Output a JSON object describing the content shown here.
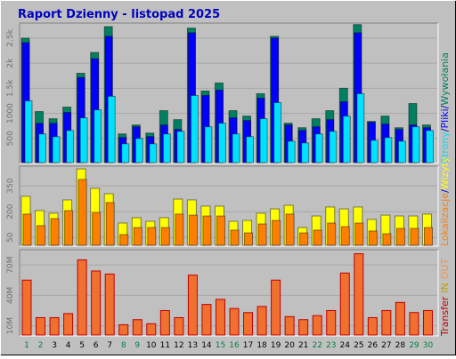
{
  "title": "Raport Dzienny -  listopad 2025",
  "legend_separator": "/",
  "chart_data": [
    {
      "type": "bar",
      "ylim": [
        0,
        2800
      ],
      "yticks": [
        500,
        1000,
        {
          "value": 1500,
          "label": "1.5k"
        },
        {
          "value": 2000,
          "label": "2k"
        },
        {
          "value": 2500,
          "label": "2.5k"
        }
      ],
      "grid": true,
      "series": [
        {
          "name": "Wywołania",
          "color": "#008060",
          "values": [
            2500,
            1036,
            893,
            1125,
            1800,
            2214,
            2730,
            590,
            768,
            607,
            1054,
            875,
            2700,
            1446,
            1607,
            1054,
            946,
            1393,
            2536,
            804,
            714,
            893,
            1054,
            1500,
            2770,
            840,
            946,
            714,
            1196,
            768
          ]
        },
        {
          "name": "Pliki",
          "color": "#0000ff",
          "values": [
            2410,
            800,
            800,
            1018,
            1714,
            2090,
            2536,
            518,
            732,
            536,
            768,
            680,
            2607,
            1357,
            1464,
            910,
            857,
            1304,
            2500,
            768,
            660,
            732,
            875,
            1232,
            2607,
            821,
            786,
            680,
            768,
            714
          ]
        },
        {
          "name": "Strony",
          "color": "#00e0ff",
          "values": [
            1250,
            590,
            536,
            660,
            910,
            1070,
            1340,
            393,
            500,
            393,
            590,
            643,
            1357,
            732,
            804,
            590,
            536,
            893,
            1214,
            446,
            410,
            590,
            643,
            946,
            1393,
            464,
            518,
            446,
            732,
            660
          ]
        }
      ]
    },
    {
      "type": "bar",
      "ylim": [
        0,
        464
      ],
      "yticks": [
        50,
        200,
        350
      ],
      "grid": true,
      "series": [
        {
          "name": "Wizyty",
          "color": "#ffff00",
          "values": [
            289,
            206,
            191,
            268,
            448,
            335,
            304,
            134,
            165,
            144,
            165,
            273,
            268,
            232,
            232,
            144,
            149,
            191,
            216,
            237,
            108,
            175,
            227,
            216,
            227,
            155,
            180,
            175,
            175,
            186
          ]
        },
        {
          "name": "Lokalizacje",
          "color": "#ff8000",
          "values": [
            186,
            119,
            160,
            206,
            387,
            196,
            253,
            67,
            108,
            108,
            108,
            186,
            180,
            175,
            175,
            93,
            77,
            129,
            149,
            186,
            77,
            93,
            134,
            113,
            134,
            88,
            72,
            103,
            103,
            108
          ]
        }
      ]
    },
    {
      "type": "bar",
      "ylim": [
        0,
        85
      ],
      "yticks": [
        {
          "value": 10,
          "label": "10M"
        },
        {
          "value": 40,
          "label": "40M"
        },
        {
          "value": 70,
          "label": "70M"
        }
      ],
      "grid": true,
      "categories": [
        "1",
        "2",
        "3",
        "4",
        "5",
        "6",
        "7",
        "8",
        "9",
        "10",
        "11",
        "12",
        "13",
        "14",
        "15",
        "16",
        "17",
        "18",
        "19",
        "20",
        "21",
        "22",
        "23",
        "24",
        "25",
        "26",
        "27",
        "28",
        "29",
        "30"
      ],
      "category_colors": [
        "#008040",
        "#008040",
        "#000000",
        "#000000",
        "#000000",
        "#000000",
        "#000000",
        "#008040",
        "#008040",
        "#000000",
        "#000000",
        "#000000",
        "#000000",
        "#000000",
        "#008040",
        "#008040",
        "#000000",
        "#000000",
        "#000000",
        "#000000",
        "#000000",
        "#008040",
        "#008040",
        "#000000",
        "#000000",
        "#000000",
        "#000000",
        "#000000",
        "#008040",
        "#008040"
      ],
      "legend_notes": [
        {
          "text": "IN",
          "color": "#c0a000"
        },
        {
          "text": "OUT",
          "color": "#ff9040"
        }
      ],
      "series": [
        {
          "name": "Transfer",
          "color": "#f07030",
          "edge": "#c00000",
          "values": [
            55,
            18,
            18,
            22,
            75,
            64,
            61,
            11,
            16,
            12,
            25,
            18,
            60,
            31,
            36,
            27,
            23,
            29,
            55,
            19,
            16,
            20,
            25,
            62,
            81,
            18,
            25,
            33,
            23,
            25
          ]
        }
      ]
    }
  ]
}
